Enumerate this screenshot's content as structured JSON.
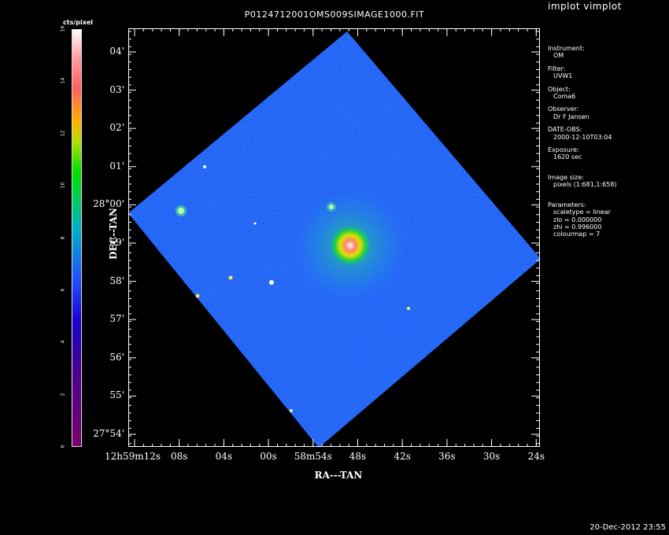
{
  "window": {
    "title": "P0124712001OMS009SIMAGE1000.FIT",
    "tool": "implot vimplot",
    "datestamp": "20-Dec-2012 23:55"
  },
  "colorbar": {
    "unit_label": "cts/pixel",
    "ticks": [
      "0",
      "2",
      "4",
      "6",
      "8",
      "10",
      "12",
      "14",
      "16"
    ]
  },
  "axes": {
    "xlabel": "RA---TAN",
    "ylabel": "DEC--TAN",
    "x_ticks": [
      "12h59m12s",
      "08s",
      "04s",
      "00s",
      "58m54s",
      "48s",
      "42s",
      "36s",
      "30s",
      "24s"
    ],
    "y_ticks": [
      "04'",
      "03'",
      "02'",
      "01'",
      "28°00'",
      "59'",
      "58'",
      "57'",
      "56'",
      "55'",
      "27°54'"
    ]
  },
  "info": {
    "instrument_key": "Instrument:",
    "instrument": "OM",
    "filter_key": "Filter:",
    "filter": "UVW1",
    "object_key": "Object:",
    "object": "Coma6",
    "observer_key": "Observer:",
    "observer": "Dr F Jansen",
    "date_key": "DATE-OBS:",
    "date": "2000-12-10T03:04",
    "exposure_key": "Exposure:",
    "exposure": "1620 sec",
    "imagesize_key": "Image size:",
    "imagesize": "pixels (1:681,1:658)",
    "params_key": "Parameters:",
    "scaletype": "scaletype = linear",
    "zlo": "zlo = 0.000000",
    "zhi": "zhi = 0.996000",
    "colourmap": "colourmap =   7"
  }
}
